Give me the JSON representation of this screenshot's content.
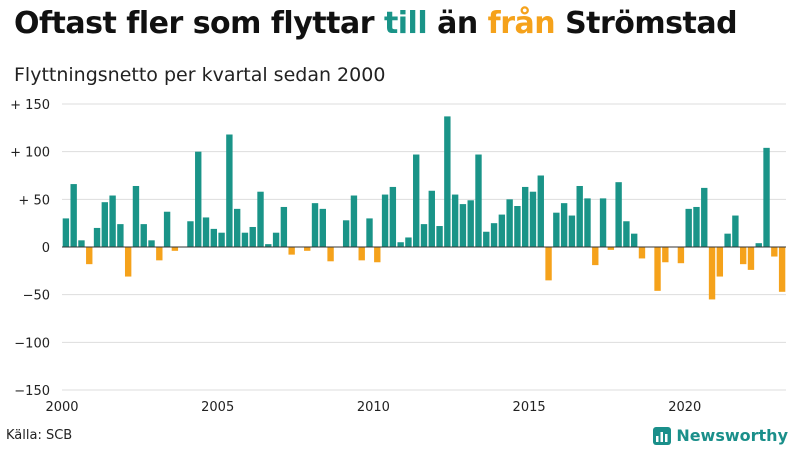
{
  "title": {
    "part1": "Oftast fler som flyttar",
    "word_to": "till",
    "part2": "än",
    "word_from": "från",
    "part3": "Strömstad"
  },
  "colors": {
    "positive": "#1a9488",
    "negative": "#f5a21b",
    "grid": "#dddddd",
    "zero_line": "#333333"
  },
  "source": "Källa: SCB",
  "brand": {
    "name": "Newsworthy",
    "icon": "chart-logo-icon"
  },
  "chart_data": {
    "type": "bar",
    "title": "Oftast fler som flyttar till än från Strömstad",
    "subtitle": "Flyttningsnetto per kvartal sedan 2000",
    "x_start_label": "2000",
    "x_tick_labels": [
      "2000",
      "2005",
      "2010",
      "2015",
      "2020"
    ],
    "y_tick_labels": [
      "+ 150",
      "+ 100",
      "+  50",
      "0",
      "−50",
      "−100",
      "−150"
    ],
    "ylim": [
      -150,
      150
    ],
    "y_ticks": [
      150,
      100,
      50,
      0,
      -50,
      -100,
      -150
    ],
    "grid": true,
    "frequency": "quarterly",
    "start": "2000 Q1",
    "values": [
      30,
      66,
      7,
      -18,
      20,
      47,
      54,
      24,
      -31,
      64,
      24,
      7,
      -14,
      37,
      -4,
      0,
      27,
      100,
      31,
      19,
      15,
      118,
      40,
      15,
      21,
      58,
      3,
      15,
      42,
      -8,
      0,
      -4,
      46,
      40,
      -15,
      0,
      28,
      54,
      -14,
      30,
      -16,
      55,
      63,
      5,
      10,
      97,
      24,
      59,
      22,
      137,
      55,
      45,
      49,
      97,
      16,
      25,
      34,
      50,
      43,
      63,
      58,
      75,
      -35,
      36,
      46,
      33,
      64,
      51,
      -19,
      51,
      -3,
      68,
      27,
      14,
      -12,
      0,
      -46,
      -16,
      0,
      -17,
      40,
      42,
      62,
      -55,
      -31,
      14,
      33,
      -18,
      -24,
      4,
      104,
      -10,
      -47
    ]
  }
}
